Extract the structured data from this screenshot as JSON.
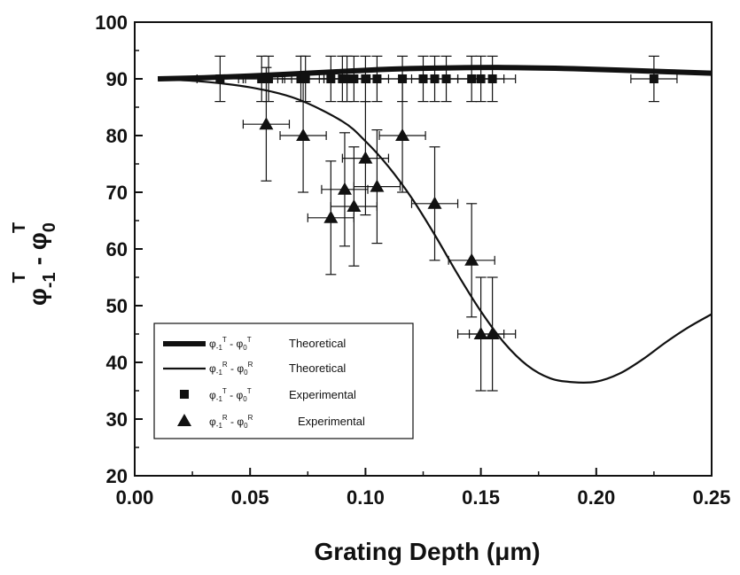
{
  "chart_data": {
    "type": "scatter",
    "xlabel": "Grating Depth (μm)",
    "ylabel_parts": {
      "symbol_a": "φ",
      "sub_a": "-1",
      "sup_a": "T",
      "minus": " - ",
      "symbol_b": "φ",
      "sub_b": "0",
      "sup_b": "T"
    },
    "xlim": [
      0.0,
      0.25
    ],
    "ylim": [
      20,
      100
    ],
    "xticks": [
      "0.00",
      "0.05",
      "0.10",
      "0.15",
      "0.20",
      "0.25"
    ],
    "yticks": [
      "20",
      "30",
      "40",
      "50",
      "60",
      "70",
      "80",
      "90",
      "100"
    ],
    "x_minor_step": 0.025,
    "y_minor_step": 5,
    "grid": false,
    "legend_position": "bottom-left",
    "series": [
      {
        "name": "Theoretical",
        "symbol_label": {
          "a": "φ",
          "sub_a": "-1",
          "sup_a": "T",
          "b": "φ",
          "sub_b": "0",
          "sup_b": "T"
        },
        "kind": "line",
        "style": "thick",
        "x": [
          0.01,
          0.03,
          0.05,
          0.07,
          0.09,
          0.11,
          0.13,
          0.16,
          0.19,
          0.22,
          0.25
        ],
        "y": [
          90,
          90.2,
          90.5,
          90.9,
          91.3,
          91.7,
          91.9,
          92.0,
          91.8,
          91.4,
          91.0
        ]
      },
      {
        "name": "Theoretical",
        "symbol_label": {
          "a": "φ",
          "sub_a": "-1",
          "sup_a": "R",
          "b": "φ",
          "sub_b": "0",
          "sup_b": "R"
        },
        "kind": "line",
        "style": "thin",
        "x": [
          0.01,
          0.03,
          0.05,
          0.07,
          0.09,
          0.1,
          0.11,
          0.12,
          0.13,
          0.14,
          0.15,
          0.16,
          0.17,
          0.18,
          0.19,
          0.2,
          0.21,
          0.22,
          0.23,
          0.24,
          0.25
        ],
        "y": [
          90,
          89.5,
          88.5,
          86.5,
          82.5,
          79.0,
          74.5,
          69.0,
          62.5,
          55.5,
          49.0,
          43.5,
          39.5,
          37.2,
          36.5,
          36.6,
          38.0,
          40.5,
          43.5,
          46.2,
          48.5
        ]
      },
      {
        "name": "Experimental",
        "symbol_label": {
          "a": "φ",
          "sub_a": "-1",
          "sup_a": "T",
          "b": "φ",
          "sub_b": "0",
          "sup_b": "T"
        },
        "kind": "scatter",
        "marker": "square",
        "xerr": 0.01,
        "yerr": 4,
        "x": [
          0.037,
          0.055,
          0.058,
          0.072,
          0.074,
          0.085,
          0.09,
          0.092,
          0.095,
          0.1,
          0.105,
          0.116,
          0.125,
          0.13,
          0.135,
          0.146,
          0.15,
          0.155,
          0.225
        ],
        "y": [
          90,
          90,
          90,
          90,
          90,
          90,
          90,
          90,
          90,
          90,
          90,
          90,
          90,
          90,
          90,
          90,
          90,
          90,
          90
        ]
      },
      {
        "name": "Experimental",
        "symbol_label": {
          "a": "φ",
          "sub_a": "-1",
          "sup_a": "R",
          "b": "φ",
          "sub_b": "0",
          "sup_b": "R"
        },
        "kind": "scatter",
        "marker": "triangle",
        "xerr": 0.01,
        "x": [
          0.057,
          0.073,
          0.085,
          0.091,
          0.095,
          0.1,
          0.105,
          0.116,
          0.13,
          0.146,
          0.15,
          0.155
        ],
        "y": [
          82,
          80,
          65.5,
          70.5,
          67.5,
          76,
          71,
          80,
          68,
          58,
          45,
          45
        ],
        "yerr": [
          10,
          10,
          10,
          10,
          10.5,
          10,
          10,
          10,
          10,
          10,
          10,
          10
        ]
      }
    ]
  }
}
